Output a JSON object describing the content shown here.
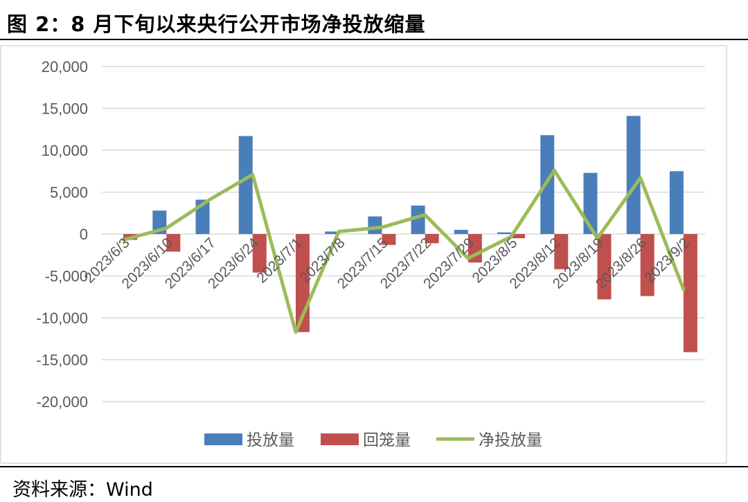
{
  "figure": {
    "title": "图 2：8 月下旬以来央行公开市场净投放缩量",
    "source": "资料来源：Wind"
  },
  "colors": {
    "investment": "#4a7ebb",
    "withdrawal": "#c0504d",
    "net": "#9bbb59",
    "grid": "#d9d9d9",
    "axis_text": "#595959"
  },
  "chart_data": {
    "type": "bar",
    "categories": [
      "2023/6/3",
      "2023/6/10",
      "2023/6/17",
      "2023/6/24",
      "2023/7/1",
      "2023/7/8",
      "2023/7/15",
      "2023/7/22",
      "2023/7/29",
      "2023/8/5",
      "2023/8/12",
      "2023/8/19",
      "2023/8/26",
      "2023/9/2"
    ],
    "series": [
      {
        "name": "投放量",
        "type": "bar",
        "values": [
          0,
          2800,
          4100,
          11700,
          0,
          300,
          2100,
          3400,
          500,
          200,
          11800,
          7300,
          14100,
          7500
        ]
      },
      {
        "name": "回笼量",
        "type": "bar",
        "values": [
          -700,
          -2100,
          0,
          -4600,
          -11700,
          0,
          -1300,
          -1100,
          -3400,
          -500,
          -4200,
          -7800,
          -7400,
          -14100
        ]
      },
      {
        "name": "净投放量",
        "type": "line",
        "values": [
          -700,
          700,
          4100,
          7100,
          -11700,
          300,
          800,
          2300,
          -2900,
          -300,
          7600,
          -500,
          6700,
          -6600
        ]
      }
    ],
    "y_ticks": [
      "20,000",
      "15,000",
      "10,000",
      "5,000",
      "0",
      "-5,000",
      "-10,000",
      "-15,000",
      "-20,000"
    ],
    "ylim": [
      -20000,
      20000
    ],
    "grid": true,
    "legend_position": "bottom"
  }
}
